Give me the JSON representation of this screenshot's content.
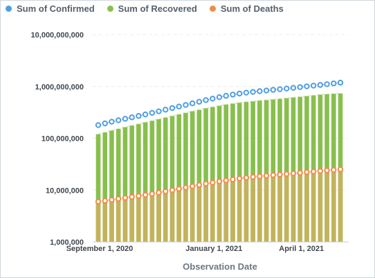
{
  "chart_data": {
    "type": "bar",
    "title": "",
    "xlabel": "Observation Date",
    "ylabel": "",
    "yscale": "log",
    "ylim": [
      1000000,
      10000000000
    ],
    "y_ticks": [
      "1,000,000",
      "10,000,000",
      "100,000,000",
      "1,000,000,000",
      "10,000,000,000"
    ],
    "x_ticks": [
      {
        "label": "September 1, 2020",
        "index": 0
      },
      {
        "label": "January 1, 2021",
        "index": 17
      },
      {
        "label": "April 1, 2021",
        "index": 30
      }
    ],
    "grid": true,
    "legend_position": "top-left",
    "x_start": "2020-09-01",
    "x_end": "2021-05-23",
    "series": [
      {
        "name": "Sum of Confirmed",
        "mark": "line-with-circles",
        "color": "#509ee3",
        "values": [
          180000000,
          194000000,
          209000000,
          223000000,
          238000000,
          254000000,
          270000000,
          289000000,
          310000000,
          332000000,
          357000000,
          383000000,
          410000000,
          440000000,
          473000000,
          508000000,
          545000000,
          583000000,
          622000000,
          660000000,
          697000000,
          730000000,
          760000000,
          787000000,
          812000000,
          836000000,
          861000000,
          886000000,
          913000000,
          942000000,
          973000000,
          1005000000,
          1038000000,
          1072000000,
          1108000000,
          1145000000,
          1185000000
        ]
      },
      {
        "name": "Sum of Recovered",
        "mark": "bar",
        "color": "#88bf4d",
        "values": [
          120000000,
          130000000,
          141000000,
          152000000,
          164000000,
          176000000,
          189000000,
          203000000,
          218000000,
          234000000,
          251000000,
          269000000,
          289000000,
          310000000,
          332000000,
          355000000,
          379000000,
          402000000,
          425000000,
          447000000,
          467000000,
          486000000,
          503000000,
          518000000,
          533000000,
          547000000,
          562000000,
          578000000,
          595000000,
          613000000,
          632000000,
          652000000,
          673000000,
          695000000,
          710000000,
          725000000,
          735000000
        ]
      },
      {
        "name": "Sum of Deaths",
        "mark": "line-with-circles-over-bars",
        "color": "#ef8c4a",
        "values": [
          6000000,
          6250000,
          6500000,
          6800000,
          7100000,
          7400000,
          7750000,
          8100000,
          8500000,
          8950000,
          9450000,
          10000000,
          10600000,
          11250000,
          11900000,
          12600000,
          13300000,
          14000000,
          14700000,
          15400000,
          16100000,
          16800000,
          17400000,
          18000000,
          18500000,
          19000000,
          19500000,
          20000000,
          20500000,
          21000000,
          21600000,
          22200000,
          22800000,
          23400000,
          24000000,
          24600000,
          25200000
        ]
      }
    ]
  }
}
